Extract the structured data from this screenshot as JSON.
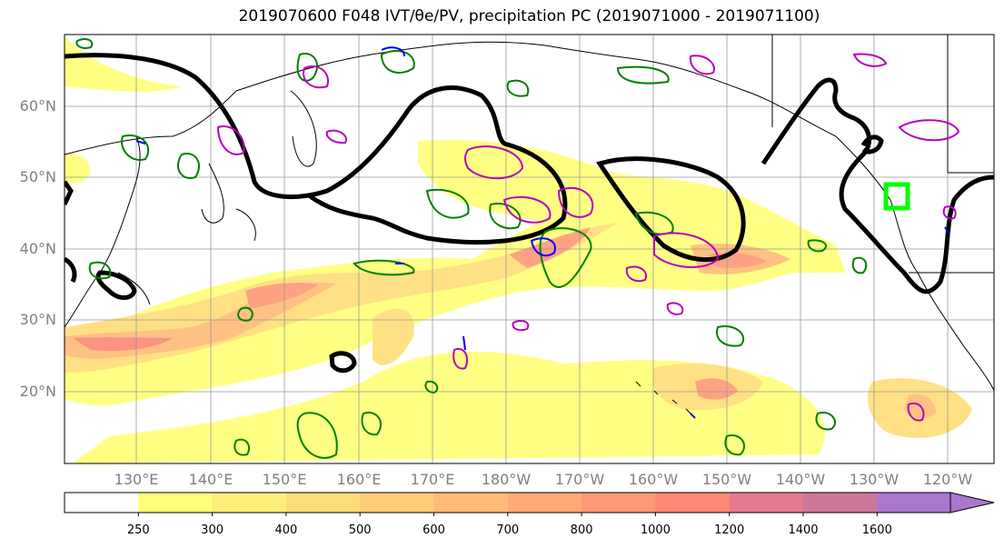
{
  "title": "2019070600 F048 IVT/θe/PV, precipitation PC (2019071000 - 2019071100)",
  "lat_labels": [
    "60°N",
    "50°N",
    "40°N",
    "30°N",
    "20°N"
  ],
  "lon_labels": [
    "130°E",
    "140°E",
    "150°E",
    "160°E",
    "170°E",
    "180°W",
    "170°W",
    "160°W",
    "150°W",
    "140°W",
    "130°W",
    "120°W"
  ],
  "colorbar": {
    "levels": [
      "250",
      "300",
      "400",
      "500",
      "600",
      "700",
      "800",
      "1000",
      "1200",
      "1400",
      "1600"
    ],
    "colors": [
      "#ffff77",
      "#ffee77",
      "#ffdd77",
      "#ffcc77",
      "#ffbb77",
      "#ffaa77",
      "#ff9977",
      "#ff8877",
      "#e77891",
      "#cc7799",
      "#aa77cc"
    ]
  },
  "legend_colors": {
    "ivt_fill": "#ffdd77",
    "theta_e_contour": "#000000",
    "pv_green": "#008000",
    "pv_blue": "#0000ff",
    "pv_magenta": "#bb00bb",
    "target_box": "#00ff00"
  }
}
